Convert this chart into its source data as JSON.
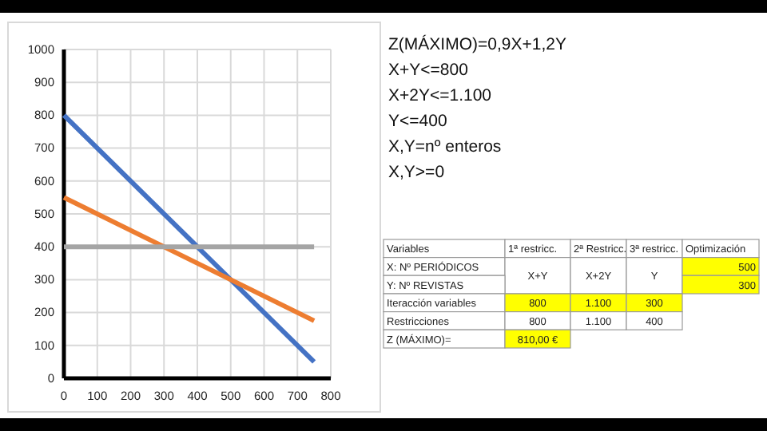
{
  "chart_data": [
    {
      "type": "line",
      "x": [
        0,
        750
      ],
      "series": [
        {
          "color": "#4472c4",
          "values": [
            800,
            50
          ]
        },
        {
          "color": "#ed7d31",
          "values": [
            550,
            175
          ]
        },
        {
          "color": "#a5a5a5",
          "values": [
            400,
            400
          ]
        }
      ],
      "xlim": [
        0,
        800
      ],
      "xticks": [
        0,
        100,
        200,
        300,
        400,
        500,
        600,
        700,
        800
      ],
      "ylim": [
        0,
        1000
      ],
      "yticks": [
        0,
        100,
        200,
        300,
        400,
        500,
        600,
        700,
        800,
        900,
        1000
      ],
      "grid": true
    },
    {
      "type": "other",
      "annotations": [
        "Z(MÁXIMO)=0,9X+1,2Y",
        "X+Y<=800",
        "X+2Y<=1.100",
        "Y<=400",
        "X,Y=nº enteros",
        "X,Y>=0"
      ]
    },
    {
      "type": "other",
      "annotations": [
        "Variables",
        "1ª restricc.",
        "2ª Restricc.",
        "3ª restricc.",
        "Optimización",
        "X: Nº PERIÓDICOS",
        "X+Y",
        "X+2Y",
        "Y",
        "500",
        "Y: Nº REVISTAS",
        "300",
        "Iteracción variables",
        "800",
        "1.100",
        "300",
        "Restricciones",
        "800",
        "1.100",
        "400",
        "Z (MÁXIMO)=",
        "810,00 €"
      ]
    }
  ]
}
